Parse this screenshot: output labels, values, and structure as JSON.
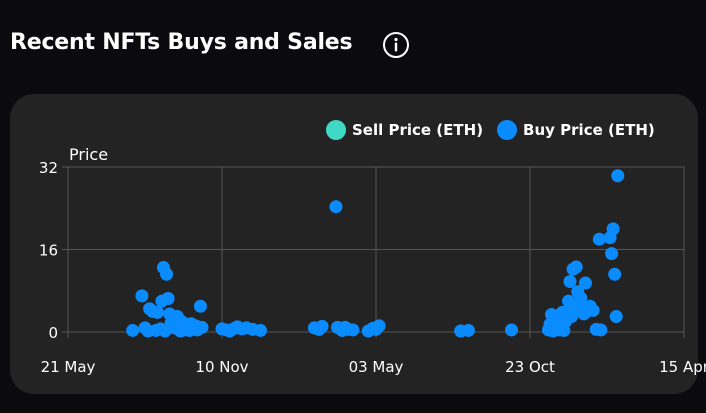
{
  "header": {
    "title": "Recent NFTs Buys and Sales",
    "info_icon": "info-circle-icon"
  },
  "colors": {
    "background": "#0b0b0d",
    "card": "#232323",
    "grid": "#555555",
    "sell": "#3fd9c6",
    "buy": "#0a8cff",
    "text": "#ffffff"
  },
  "chart_data": {
    "type": "scatter",
    "title": "",
    "ylabel": "Price",
    "xlabel": "",
    "ylim": [
      0,
      32
    ],
    "yticks": [
      0,
      16,
      32
    ],
    "xlim": [
      0,
      4
    ],
    "xticks": [
      {
        "value": 0,
        "label": "21 May"
      },
      {
        "value": 1,
        "label": "10 Nov"
      },
      {
        "value": 2,
        "label": "03 May"
      },
      {
        "value": 3,
        "label": "23 Oct"
      },
      {
        "value": 4,
        "label": "15 Apr"
      }
    ],
    "legend": [
      {
        "name": "Sell Price (ETH)",
        "key": "sell"
      },
      {
        "name": "Buy Price (ETH)",
        "key": "buy"
      }
    ],
    "series": [
      {
        "name": "Sell Price (ETH)",
        "key": "sell",
        "points": []
      },
      {
        "name": "Buy Price (ETH)",
        "key": "buy",
        "points": [
          [
            0.42,
            0.3
          ],
          [
            0.48,
            7.0
          ],
          [
            0.5,
            0.8
          ],
          [
            0.52,
            0.2
          ],
          [
            0.53,
            4.5
          ],
          [
            0.55,
            4.0
          ],
          [
            0.57,
            0.3
          ],
          [
            0.58,
            3.8
          ],
          [
            0.6,
            0.6
          ],
          [
            0.61,
            6.0
          ],
          [
            0.62,
            12.5
          ],
          [
            0.63,
            0.2
          ],
          [
            0.64,
            11.2
          ],
          [
            0.65,
            6.5
          ],
          [
            0.66,
            3.5
          ],
          [
            0.67,
            1.8
          ],
          [
            0.68,
            2.5
          ],
          [
            0.69,
            0.8
          ],
          [
            0.7,
            1.2
          ],
          [
            0.71,
            3.0
          ],
          [
            0.72,
            0.5
          ],
          [
            0.73,
            0.2
          ],
          [
            0.74,
            2.0
          ],
          [
            0.75,
            1.5
          ],
          [
            0.76,
            0.8
          ],
          [
            0.77,
            0.4
          ],
          [
            0.78,
            1.2
          ],
          [
            0.79,
            0.3
          ],
          [
            0.8,
            1.6
          ],
          [
            0.81,
            0.9
          ],
          [
            0.82,
            0.6
          ],
          [
            0.83,
            1.2
          ],
          [
            0.84,
            0.4
          ],
          [
            0.85,
            0.7
          ],
          [
            0.86,
            5.0
          ],
          [
            0.87,
            0.9
          ],
          [
            1.0,
            0.6
          ],
          [
            1.03,
            0.4
          ],
          [
            1.05,
            0.2
          ],
          [
            1.08,
            0.7
          ],
          [
            1.1,
            1.0
          ],
          [
            1.13,
            0.6
          ],
          [
            1.16,
            0.8
          ],
          [
            1.2,
            0.5
          ],
          [
            1.25,
            0.3
          ],
          [
            1.6,
            0.8
          ],
          [
            1.63,
            0.5
          ],
          [
            1.65,
            1.1
          ],
          [
            1.74,
            24.3
          ],
          [
            1.75,
            0.9
          ],
          [
            1.78,
            0.3
          ],
          [
            1.8,
            0.9
          ],
          [
            1.82,
            0.5
          ],
          [
            1.85,
            0.4
          ],
          [
            1.95,
            0.2
          ],
          [
            1.98,
            0.7
          ],
          [
            2.0,
            0.5
          ],
          [
            2.02,
            1.2
          ],
          [
            2.55,
            0.2
          ],
          [
            2.6,
            0.3
          ],
          [
            2.88,
            0.4
          ],
          [
            3.12,
            0.4
          ],
          [
            3.13,
            1.5
          ],
          [
            3.14,
            3.4
          ],
          [
            3.15,
            0.2
          ],
          [
            3.16,
            0.8
          ],
          [
            3.17,
            1.8
          ],
          [
            3.18,
            2.5
          ],
          [
            3.19,
            0.4
          ],
          [
            3.2,
            1.0
          ],
          [
            3.21,
            3.8
          ],
          [
            3.22,
            0.3
          ],
          [
            3.23,
            2.0
          ],
          [
            3.24,
            4.0
          ],
          [
            3.25,
            6.0
          ],
          [
            3.26,
            9.8
          ],
          [
            3.27,
            3.0
          ],
          [
            3.28,
            12.2
          ],
          [
            3.29,
            4.5
          ],
          [
            3.3,
            12.6
          ],
          [
            3.31,
            7.8
          ],
          [
            3.32,
            5.4
          ],
          [
            3.33,
            6.6
          ],
          [
            3.34,
            4.2
          ],
          [
            3.35,
            3.5
          ],
          [
            3.36,
            9.5
          ],
          [
            3.37,
            4.0
          ],
          [
            3.39,
            5.0
          ],
          [
            3.41,
            4.2
          ],
          [
            3.43,
            0.5
          ],
          [
            3.45,
            18.0
          ],
          [
            3.46,
            0.4
          ],
          [
            3.52,
            18.3
          ],
          [
            3.53,
            15.2
          ],
          [
            3.54,
            20.0
          ],
          [
            3.55,
            11.2
          ],
          [
            3.56,
            3.0
          ],
          [
            3.57,
            30.3
          ]
        ]
      }
    ]
  }
}
